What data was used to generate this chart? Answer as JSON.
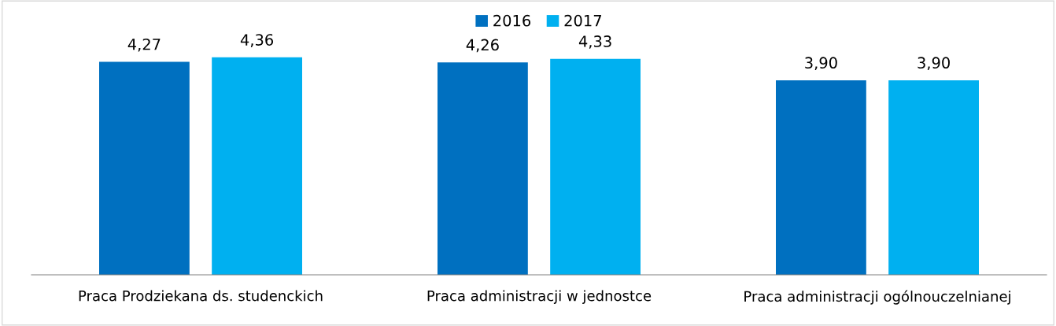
{
  "chart_data": {
    "type": "bar",
    "categories": [
      "Praca Prodziekana ds. studenckich",
      "Praca administracji w jednostce",
      "Praca administracji ogólnouczelnianej"
    ],
    "series": [
      {
        "name": "2016",
        "color": "#0070c0",
        "values": [
          4.27,
          4.26,
          3.9
        ],
        "value_labels": [
          "4,27",
          "4,26",
          "3,90"
        ]
      },
      {
        "name": "2017",
        "color": "#00b0f0",
        "values": [
          4.36,
          4.33,
          3.9
        ],
        "value_labels": [
          "4,36",
          "4,33",
          "3,90"
        ]
      }
    ],
    "grid": false,
    "legend": "top"
  }
}
